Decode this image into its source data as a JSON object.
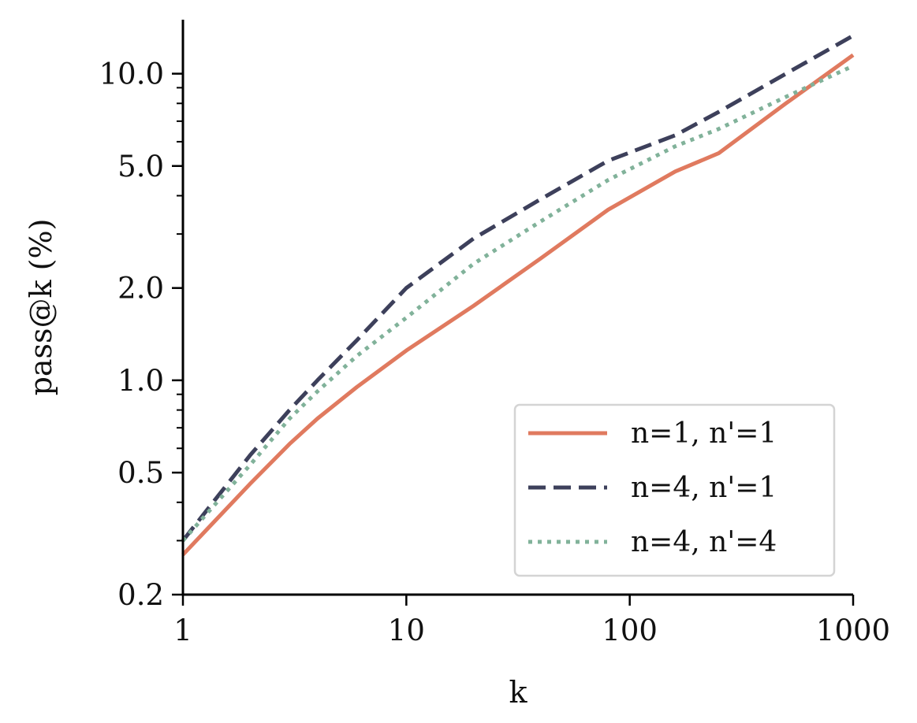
{
  "chart_data": {
    "type": "line",
    "title": "",
    "xlabel": "k",
    "ylabel": "pass@k (%)",
    "xscale": "log",
    "yscale": "log",
    "xlim": [
      1,
      1000
    ],
    "ylim": [
      0.2,
      15
    ],
    "x_ticks": [
      1,
      10,
      100,
      1000
    ],
    "x_tick_labels": [
      "1",
      "10",
      "100",
      "1000"
    ],
    "y_ticks": [
      0.2,
      0.5,
      1.0,
      2.0,
      5.0,
      10.0
    ],
    "y_tick_labels": [
      "0.2",
      "0.5",
      "1.0",
      "2.0",
      "5.0",
      "10.0"
    ],
    "grid": false,
    "legend_position": "bottom-right",
    "series": [
      {
        "name": "n=1, n'=1",
        "color": "#E07A5F",
        "style": "solid",
        "x": [
          1,
          2,
          3,
          4,
          6,
          10,
          20,
          40,
          80,
          160,
          250,
          500,
          1000
        ],
        "y": [
          0.27,
          0.46,
          0.62,
          0.75,
          0.95,
          1.25,
          1.75,
          2.5,
          3.6,
          4.8,
          5.5,
          8.0,
          11.5
        ]
      },
      {
        "name": "n=4, n'=1",
        "color": "#3D405B",
        "style": "dashed",
        "x": [
          1,
          2,
          3,
          4,
          6,
          10,
          20,
          40,
          80,
          160,
          250,
          500,
          1000
        ],
        "y": [
          0.3,
          0.57,
          0.8,
          1.0,
          1.35,
          2.0,
          2.9,
          3.9,
          5.2,
          6.3,
          7.5,
          10.0,
          13.3
        ]
      },
      {
        "name": "n=4, n'=4",
        "color": "#81B29A",
        "style": "dotted",
        "x": [
          1,
          2,
          3,
          4,
          6,
          10,
          20,
          40,
          80,
          160,
          250,
          500,
          1000
        ],
        "y": [
          0.3,
          0.53,
          0.75,
          0.92,
          1.2,
          1.6,
          2.4,
          3.3,
          4.5,
          5.8,
          6.6,
          8.4,
          10.6
        ]
      }
    ]
  }
}
